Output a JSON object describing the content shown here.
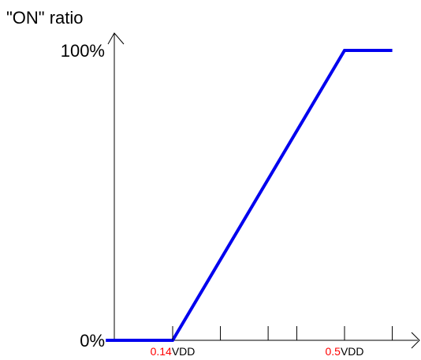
{
  "chart_data": {
    "type": "line",
    "ylabel": "\"ON\" ratio",
    "xlabel": "",
    "y_ticks": [
      {
        "value": 0,
        "label": "0%"
      },
      {
        "value": 100,
        "label": "100%"
      }
    ],
    "x_ticks": [
      {
        "value": 0.14,
        "number": "0.14",
        "unit": "VDD",
        "labeled": true
      },
      {
        "value": 0.24,
        "labeled": false
      },
      {
        "value": 0.34,
        "labeled": false
      },
      {
        "value": 0.4,
        "labeled": false
      },
      {
        "value": 0.5,
        "number": "0.5",
        "unit": "VDD",
        "labeled": true
      },
      {
        "value": 0.6,
        "labeled": false
      }
    ],
    "xlim": [
      0,
      0.66
    ],
    "ylim": [
      0,
      100
    ],
    "series": [
      {
        "x": [
          0,
          0.14,
          0.5,
          0.6
        ],
        "y": [
          0,
          0,
          100,
          100
        ]
      }
    ],
    "grid": false,
    "colors": {
      "series": "#0000ee",
      "tick_number": "#ff0000",
      "tick_unit": "#000000",
      "axis": "#000000"
    }
  }
}
